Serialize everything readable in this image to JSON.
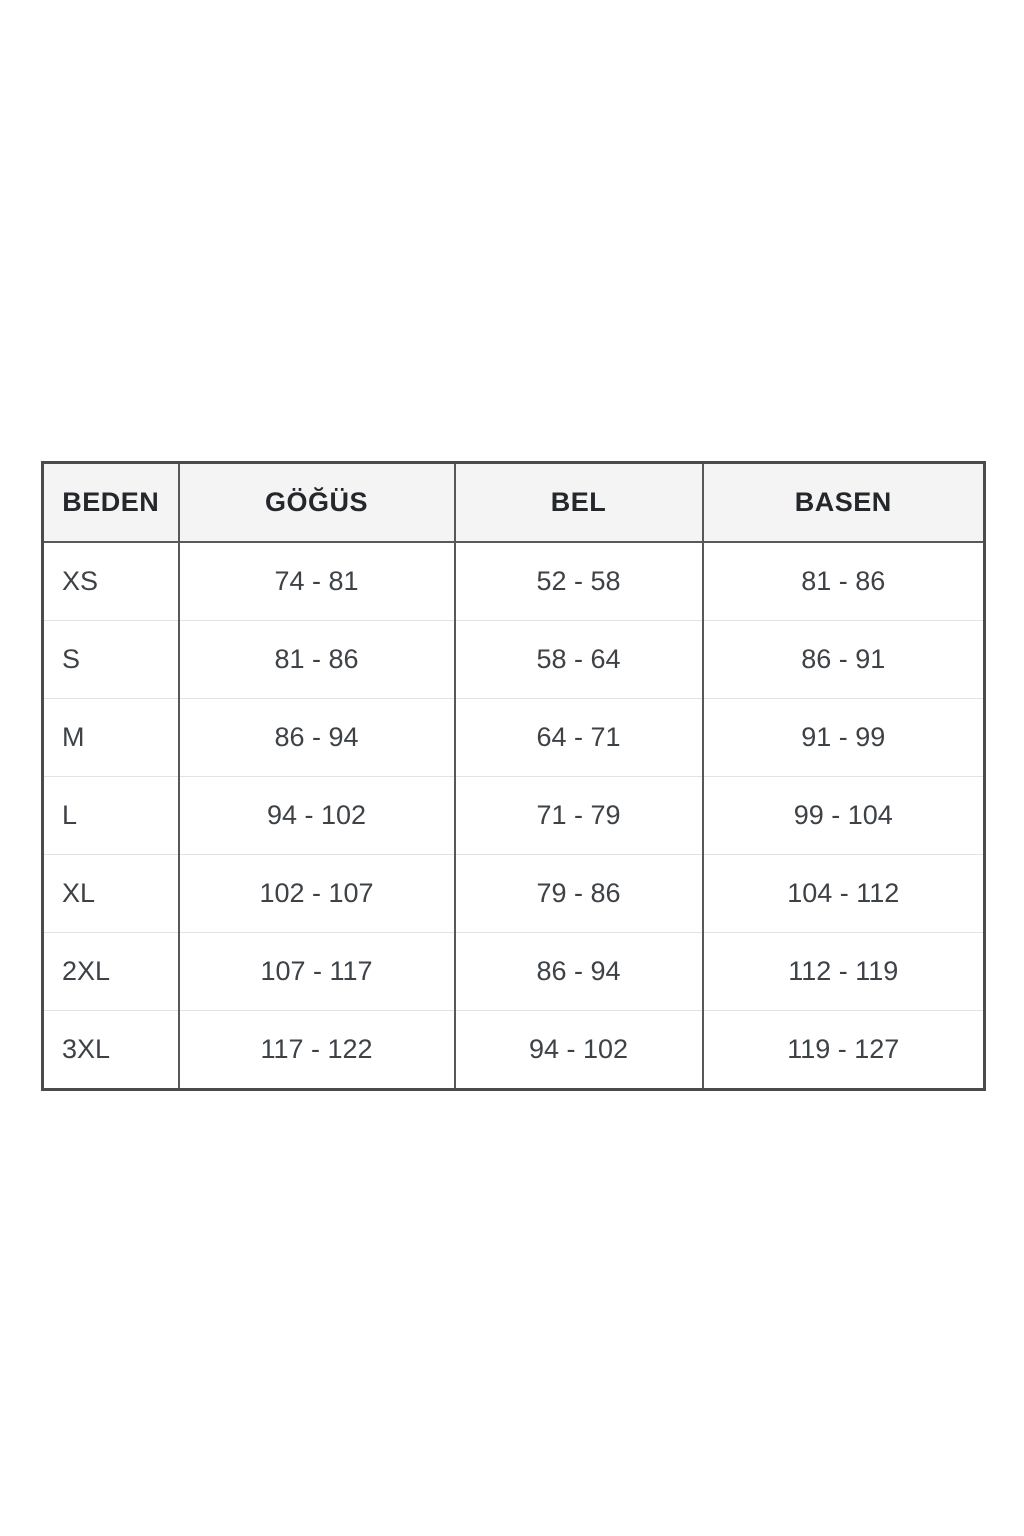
{
  "chart_data": {
    "type": "table",
    "columns": [
      "BEDEN",
      "GÖĞÜS",
      "BEL",
      "BASEN"
    ],
    "rows": [
      {
        "size": "XS",
        "values": [
          "74 - 81",
          "52 - 58",
          "81 - 86"
        ]
      },
      {
        "size": "S",
        "values": [
          "81 - 86",
          "58 - 64",
          "86 - 91"
        ]
      },
      {
        "size": "M",
        "values": [
          "86 - 94",
          "64 - 71",
          "91 - 99"
        ]
      },
      {
        "size": "L",
        "values": [
          "94 - 102",
          "71 - 79",
          "99 - 104"
        ]
      },
      {
        "size": "XL",
        "values": [
          "102 - 107",
          "79 - 86",
          "104 - 112"
        ]
      },
      {
        "size": "2XL",
        "values": [
          "107 - 117",
          "86 - 94",
          "112 - 119"
        ]
      },
      {
        "size": "3XL",
        "values": [
          "117 - 122",
          "94 - 102",
          "119 - 127"
        ]
      }
    ],
    "layout": {
      "legend": "none",
      "grid": "table-borders"
    },
    "colors": {
      "header_background": "#f4f4f4",
      "outer_border": "#4b4b4b",
      "column_divider": "#585858",
      "row_divider": "#e3e3e3",
      "header_text": "#24272b",
      "cell_text": "#3d4247",
      "page_background": "#ffffff"
    }
  }
}
